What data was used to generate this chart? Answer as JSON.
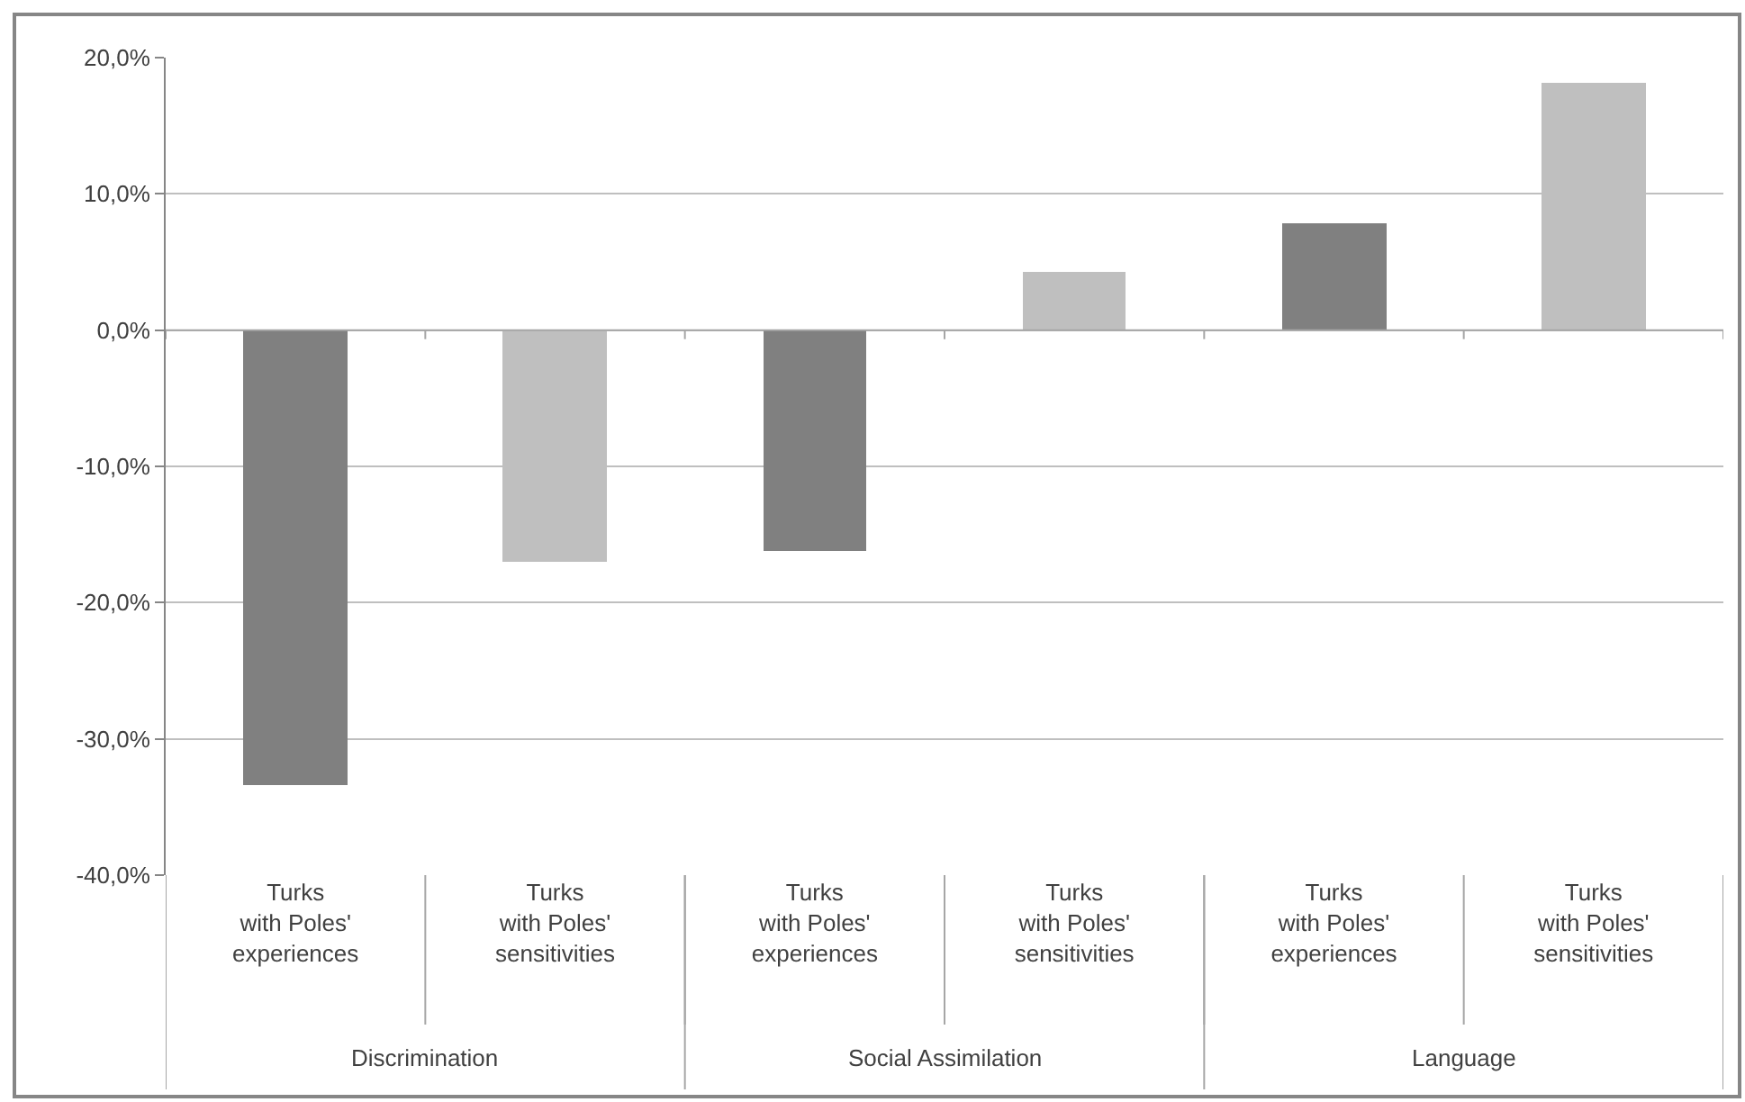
{
  "chart_data": {
    "type": "bar",
    "categories": [
      "Turks\nwith Poles'\nexperiences",
      "Turks\nwith Poles'\nsensitivities",
      "Turks\nwith Poles'\nexperiences",
      "Turks\nwith Poles'\nsensitivities",
      "Turks\nwith Poles'\nexperiences",
      "Turks\nwith Poles'\nsensitivities"
    ],
    "values": [
      -33.4,
      -17.0,
      -16.2,
      4.3,
      7.9,
      18.1
    ],
    "colors": [
      "#808080",
      "#bfbfbf",
      "#808080",
      "#bfbfbf",
      "#808080",
      "#bfbfbf"
    ],
    "annotations": [
      "Discrimination",
      "Social Assimilation",
      "Language"
    ],
    "ylim": [
      -40,
      20
    ],
    "yticks": [
      {
        "value": -40,
        "label": "-40,0%"
      },
      {
        "value": -30,
        "label": "-30,0%"
      },
      {
        "value": -20,
        "label": "-20,0%"
      },
      {
        "value": -10,
        "label": "-10,0%"
      },
      {
        "value": 0,
        "label": "0,0%"
      },
      {
        "value": 10,
        "label": "10,0%"
      },
      {
        "value": 20,
        "label": "20,0%"
      }
    ],
    "grid": "y"
  }
}
